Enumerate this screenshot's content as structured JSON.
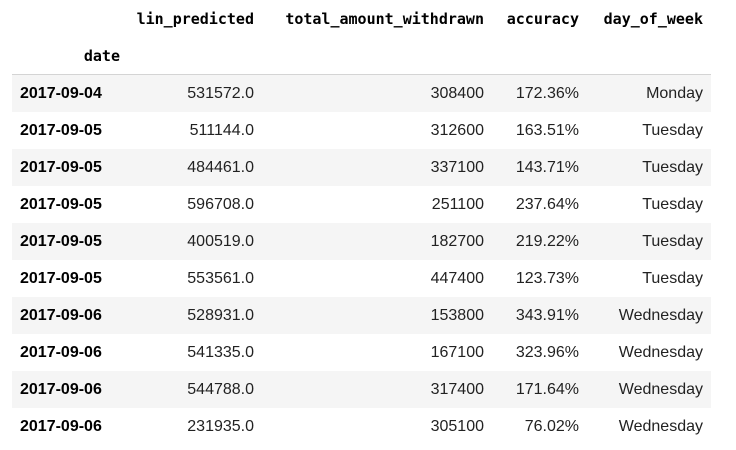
{
  "table": {
    "columns": [
      "lin_predicted",
      "total_amount_withdrawn",
      "accuracy",
      "day_of_week"
    ],
    "index_name": "date",
    "rows": [
      {
        "date": "2017-09-04",
        "lin_predicted": "531572.0",
        "total_amount_withdrawn": "308400",
        "accuracy": "172.36%",
        "day_of_week": "Monday"
      },
      {
        "date": "2017-09-05",
        "lin_predicted": "511144.0",
        "total_amount_withdrawn": "312600",
        "accuracy": "163.51%",
        "day_of_week": "Tuesday"
      },
      {
        "date": "2017-09-05",
        "lin_predicted": "484461.0",
        "total_amount_withdrawn": "337100",
        "accuracy": "143.71%",
        "day_of_week": "Tuesday"
      },
      {
        "date": "2017-09-05",
        "lin_predicted": "596708.0",
        "total_amount_withdrawn": "251100",
        "accuracy": "237.64%",
        "day_of_week": "Tuesday"
      },
      {
        "date": "2017-09-05",
        "lin_predicted": "400519.0",
        "total_amount_withdrawn": "182700",
        "accuracy": "219.22%",
        "day_of_week": "Tuesday"
      },
      {
        "date": "2017-09-05",
        "lin_predicted": "553561.0",
        "total_amount_withdrawn": "447400",
        "accuracy": "123.73%",
        "day_of_week": "Tuesday"
      },
      {
        "date": "2017-09-06",
        "lin_predicted": "528931.0",
        "total_amount_withdrawn": "153800",
        "accuracy": "343.91%",
        "day_of_week": "Wednesday"
      },
      {
        "date": "2017-09-06",
        "lin_predicted": "541335.0",
        "total_amount_withdrawn": "167100",
        "accuracy": "323.96%",
        "day_of_week": "Wednesday"
      },
      {
        "date": "2017-09-06",
        "lin_predicted": "544788.0",
        "total_amount_withdrawn": "317400",
        "accuracy": "171.64%",
        "day_of_week": "Wednesday"
      },
      {
        "date": "2017-09-06",
        "lin_predicted": "231935.0",
        "total_amount_withdrawn": "305100",
        "accuracy": "76.02%",
        "day_of_week": "Wednesday"
      }
    ]
  }
}
